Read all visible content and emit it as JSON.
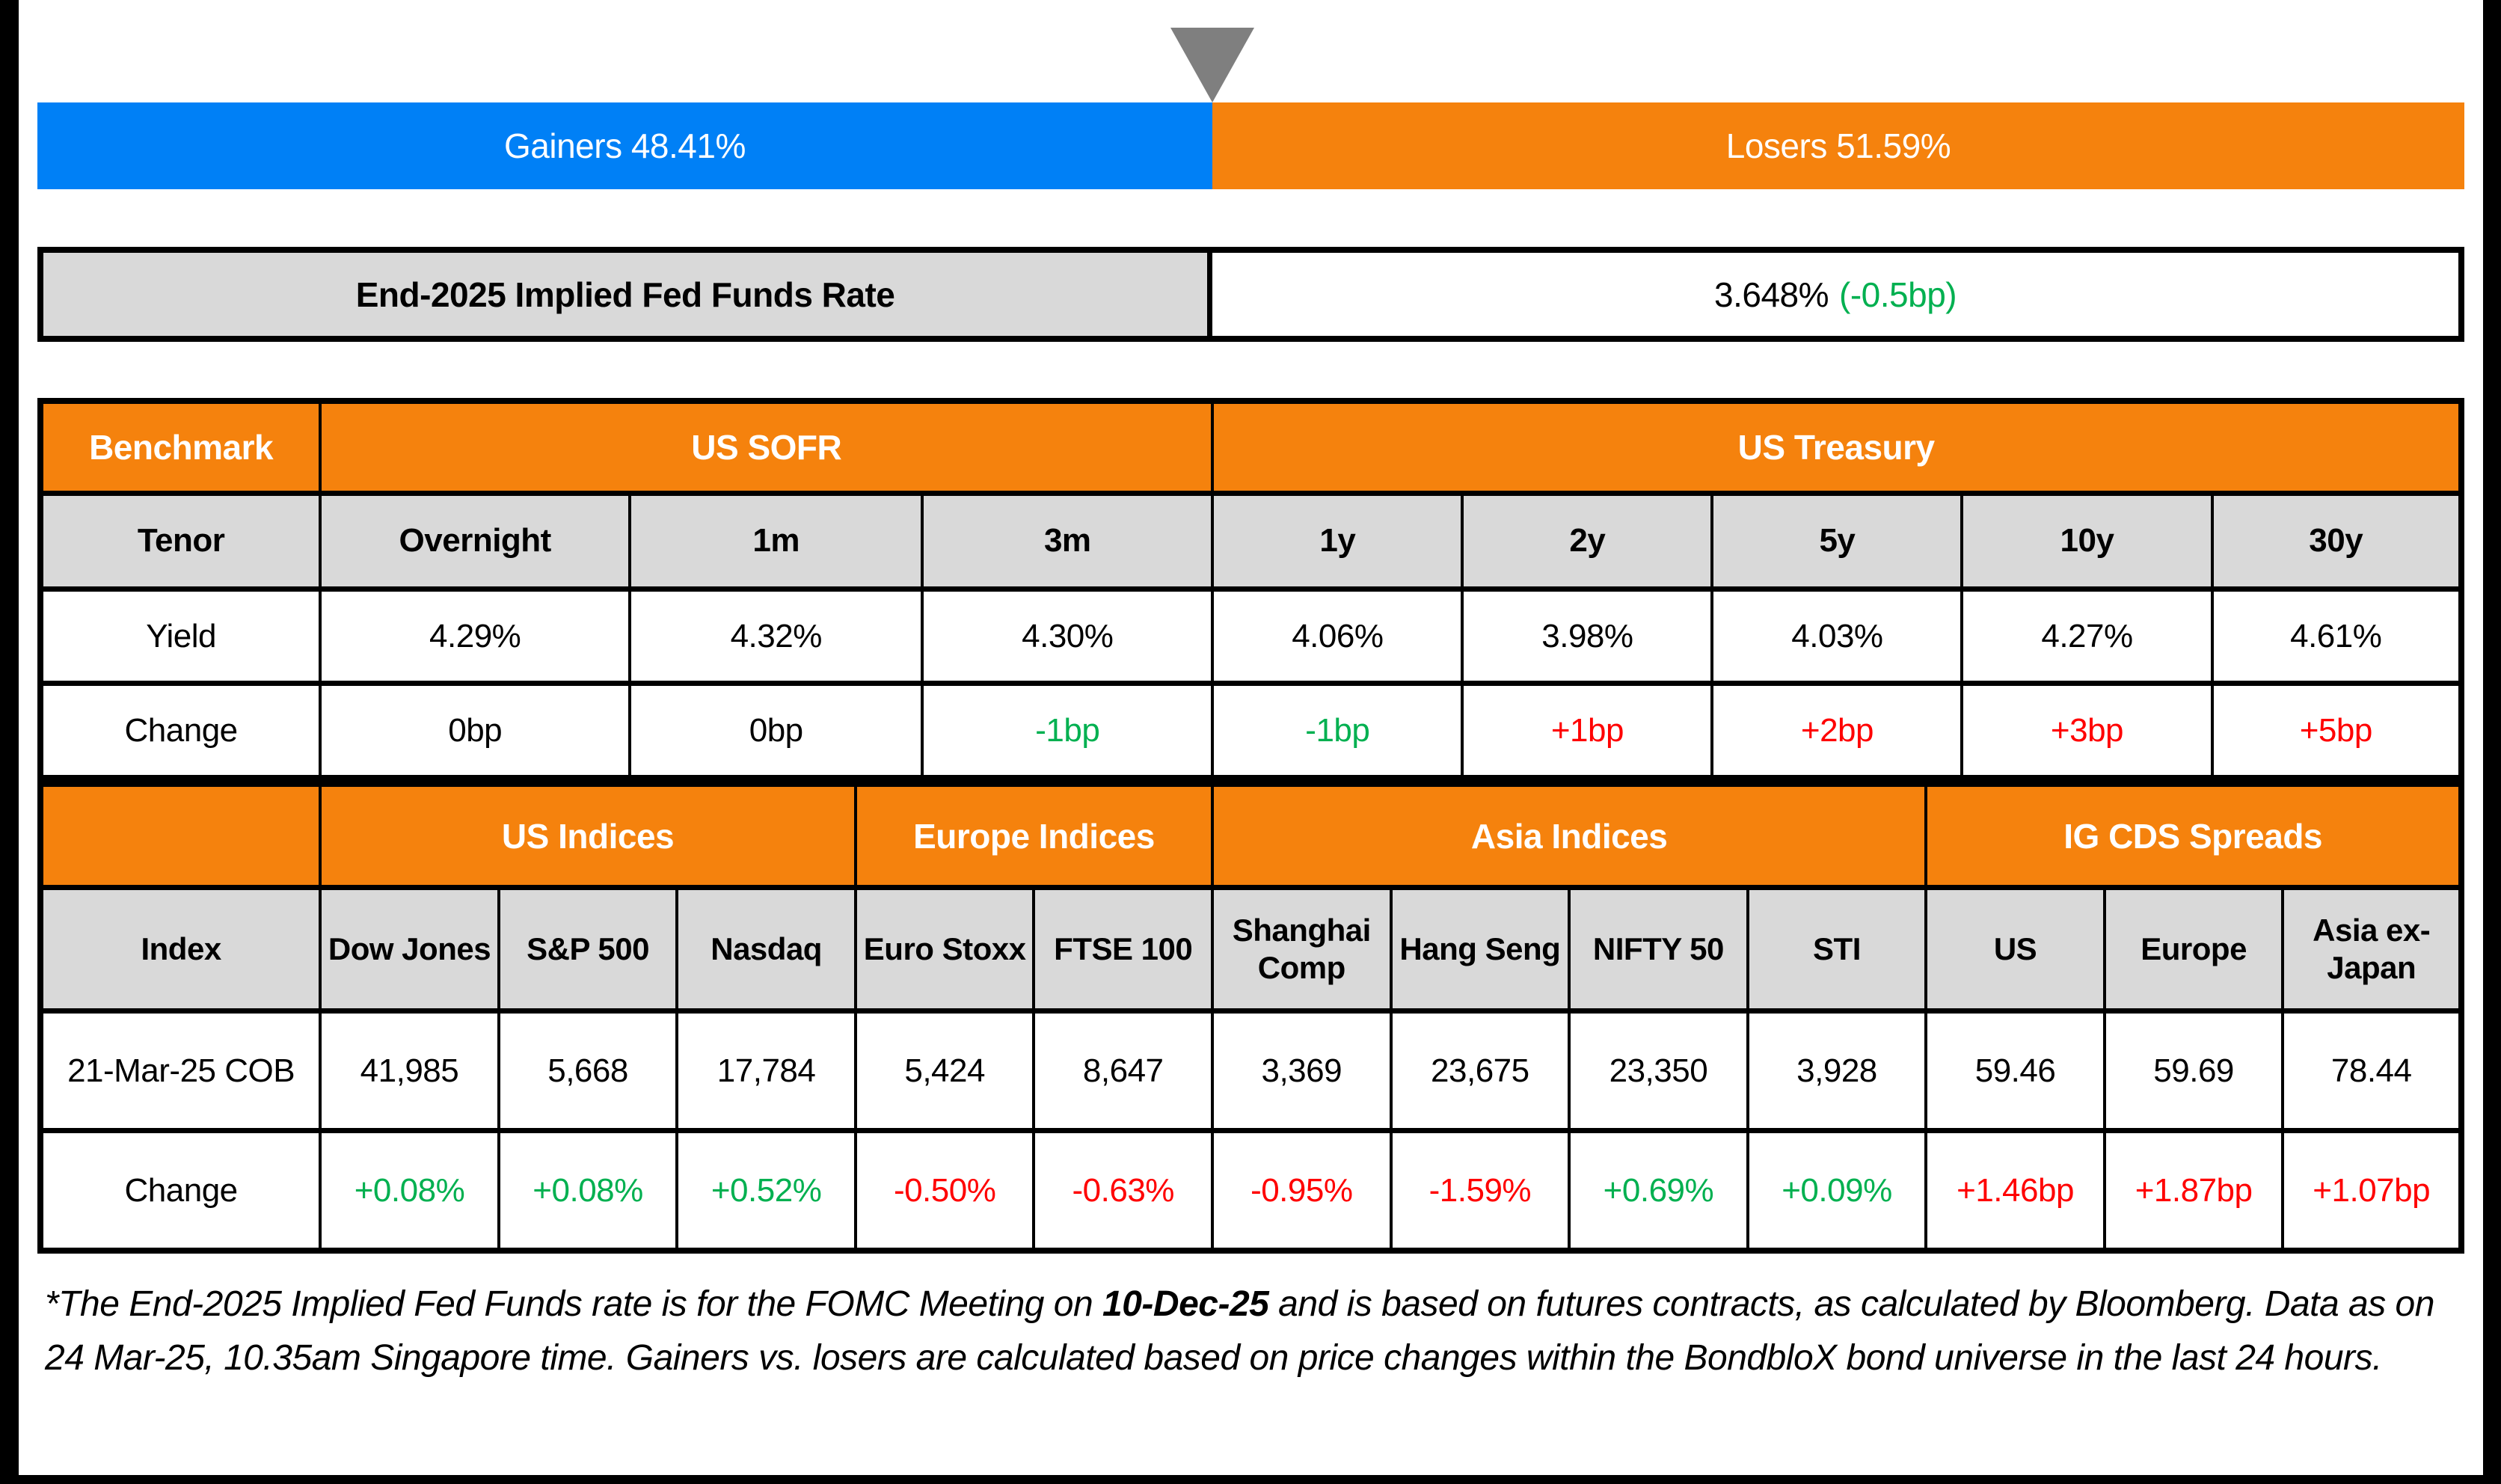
{
  "colors": {
    "blue": "#0080f6",
    "orange": "#f5820d",
    "gray": "#d9d9d9",
    "green": "#00b050",
    "red": "#ff0000",
    "tri": "#7f7f7f"
  },
  "gainers_losers_bar": {
    "gainers_label": "Gainers 48.41%",
    "losers_label": "Losers 51.59%",
    "gainers_pct": 48.41,
    "losers_pct": 51.59
  },
  "fed_funds": {
    "label": "End-2025 Implied Fed Funds Rate",
    "rate": "3.648%",
    "change": "(-0.5bp)"
  },
  "benchmark_table": {
    "corner_label": "Benchmark",
    "groups": [
      {
        "label": "US SOFR",
        "span": 3
      },
      {
        "label": "US Treasury",
        "span": 5
      }
    ],
    "row_labels": {
      "tenor": "Tenor",
      "yield": "Yield",
      "change": "Change"
    },
    "columns": [
      {
        "tenor": "Overnight",
        "yield": "4.29%",
        "change": "0bp",
        "change_color": "black"
      },
      {
        "tenor": "1m",
        "yield": "4.32%",
        "change": "0bp",
        "change_color": "black"
      },
      {
        "tenor": "3m",
        "yield": "4.30%",
        "change": "-1bp",
        "change_color": "green"
      },
      {
        "tenor": "1y",
        "yield": "4.06%",
        "change": "-1bp",
        "change_color": "green"
      },
      {
        "tenor": "2y",
        "yield": "3.98%",
        "change": "+1bp",
        "change_color": "red"
      },
      {
        "tenor": "5y",
        "yield": "4.03%",
        "change": "+2bp",
        "change_color": "red"
      },
      {
        "tenor": "10y",
        "yield": "4.27%",
        "change": "+3bp",
        "change_color": "red"
      },
      {
        "tenor": "30y",
        "yield": "4.61%",
        "change": "+5bp",
        "change_color": "red"
      }
    ]
  },
  "indices_table": {
    "corner_label": "",
    "groups": [
      {
        "label": "US Indices",
        "span": 3
      },
      {
        "label": "Europe Indices",
        "span": 2
      },
      {
        "label": "Asia Indices",
        "span": 4
      },
      {
        "label": "IG CDS Spreads",
        "span": 3
      }
    ],
    "row_labels": {
      "index": "Index",
      "cob": "21-Mar-25 COB",
      "change": "Change"
    },
    "columns": [
      {
        "name": "Dow Jones",
        "cob": "41,985",
        "change": "+0.08%",
        "change_color": "green"
      },
      {
        "name": "S&P 500",
        "cob": "5,668",
        "change": "+0.08%",
        "change_color": "green"
      },
      {
        "name": "Nasdaq",
        "cob": "17,784",
        "change": "+0.52%",
        "change_color": "green"
      },
      {
        "name": "Euro Stoxx",
        "cob": "5,424",
        "change": "-0.50%",
        "change_color": "red"
      },
      {
        "name": "FTSE 100",
        "cob": "8,647",
        "change": "-0.63%",
        "change_color": "red"
      },
      {
        "name": "Shanghai Comp",
        "cob": "3,369",
        "change": "-0.95%",
        "change_color": "red"
      },
      {
        "name": "Hang Seng",
        "cob": "23,675",
        "change": "-1.59%",
        "change_color": "red"
      },
      {
        "name": "NIFTY 50",
        "cob": "23,350",
        "change": "+0.69%",
        "change_color": "green"
      },
      {
        "name": "STI",
        "cob": "3,928",
        "change": "+0.09%",
        "change_color": "green"
      },
      {
        "name": "US",
        "cob": "59.46",
        "change": "+1.46bp",
        "change_color": "red"
      },
      {
        "name": "Europe",
        "cob": "59.69",
        "change": "+1.87bp",
        "change_color": "red"
      },
      {
        "name": "Asia ex-Japan",
        "cob": "78.44",
        "change": "+1.07bp",
        "change_color": "red"
      }
    ]
  },
  "footnote": {
    "part1": "*The End-2025 Implied Fed Funds rate is for the FOMC Meeting on ",
    "bold": "10-Dec-25",
    "part2": " and is based on futures contracts, as calculated by Bloomberg. Data as on 24 Mar-25, 10.35am Singapore time. Gainers vs. losers are calculated based on price changes within the BondbloX bond universe in the last 24 hours."
  },
  "chart_data": [
    {
      "type": "bar",
      "title": "Gainers vs Losers (stacked 100% bar)",
      "categories": [
        "Gainers",
        "Losers"
      ],
      "values": [
        48.41,
        51.59
      ],
      "unit": "%",
      "colors": [
        "#0080f6",
        "#f5820d"
      ],
      "annotation": "gray down-triangle marker at the 48.41/51.59 split"
    },
    {
      "type": "table",
      "title": "End-2025 Implied Fed Funds Rate",
      "rows": [
        [
          "End-2025 Implied Fed Funds Rate",
          "3.648% (-0.5bp)"
        ]
      ]
    },
    {
      "type": "table",
      "title": "Benchmark — US SOFR & US Treasury",
      "columns": [
        "Tenor",
        "Overnight",
        "1m",
        "3m",
        "1y",
        "2y",
        "5y",
        "10y",
        "30y"
      ],
      "rows": [
        [
          "Yield",
          "4.29%",
          "4.32%",
          "4.30%",
          "4.06%",
          "3.98%",
          "4.03%",
          "4.27%",
          "4.61%"
        ],
        [
          "Change",
          "0bp",
          "0bp",
          "-1bp",
          "-1bp",
          "+1bp",
          "+2bp",
          "+3bp",
          "+5bp"
        ]
      ],
      "groups": [
        "US SOFR: Overnight/1m/3m",
        "US Treasury: 1y/2y/5y/10y/30y"
      ]
    },
    {
      "type": "table",
      "title": "US / Europe / Asia Indices & IG CDS Spreads",
      "columns": [
        "Index",
        "Dow Jones",
        "S&P 500",
        "Nasdaq",
        "Euro Stoxx",
        "FTSE 100",
        "Shanghai Comp",
        "Hang Seng",
        "NIFTY 50",
        "STI",
        "US",
        "Europe",
        "Asia ex-Japan"
      ],
      "rows": [
        [
          "21-Mar-25 COB",
          "41,985",
          "5,668",
          "17,784",
          "5,424",
          "8,647",
          "3,369",
          "23,675",
          "23,350",
          "3,928",
          "59.46",
          "59.69",
          "78.44"
        ],
        [
          "Change",
          "+0.08%",
          "+0.08%",
          "+0.52%",
          "-0.50%",
          "-0.63%",
          "-0.95%",
          "-1.59%",
          "+0.69%",
          "+0.09%",
          "+1.46bp",
          "+1.87bp",
          "+1.07bp"
        ]
      ],
      "groups": [
        "US Indices: Dow Jones/S&P 500/Nasdaq",
        "Europe Indices: Euro Stoxx/FTSE 100",
        "Asia Indices: Shanghai Comp/Hang Seng/NIFTY 50/STI",
        "IG CDS Spreads: US/Europe/Asia ex-Japan"
      ]
    }
  ]
}
